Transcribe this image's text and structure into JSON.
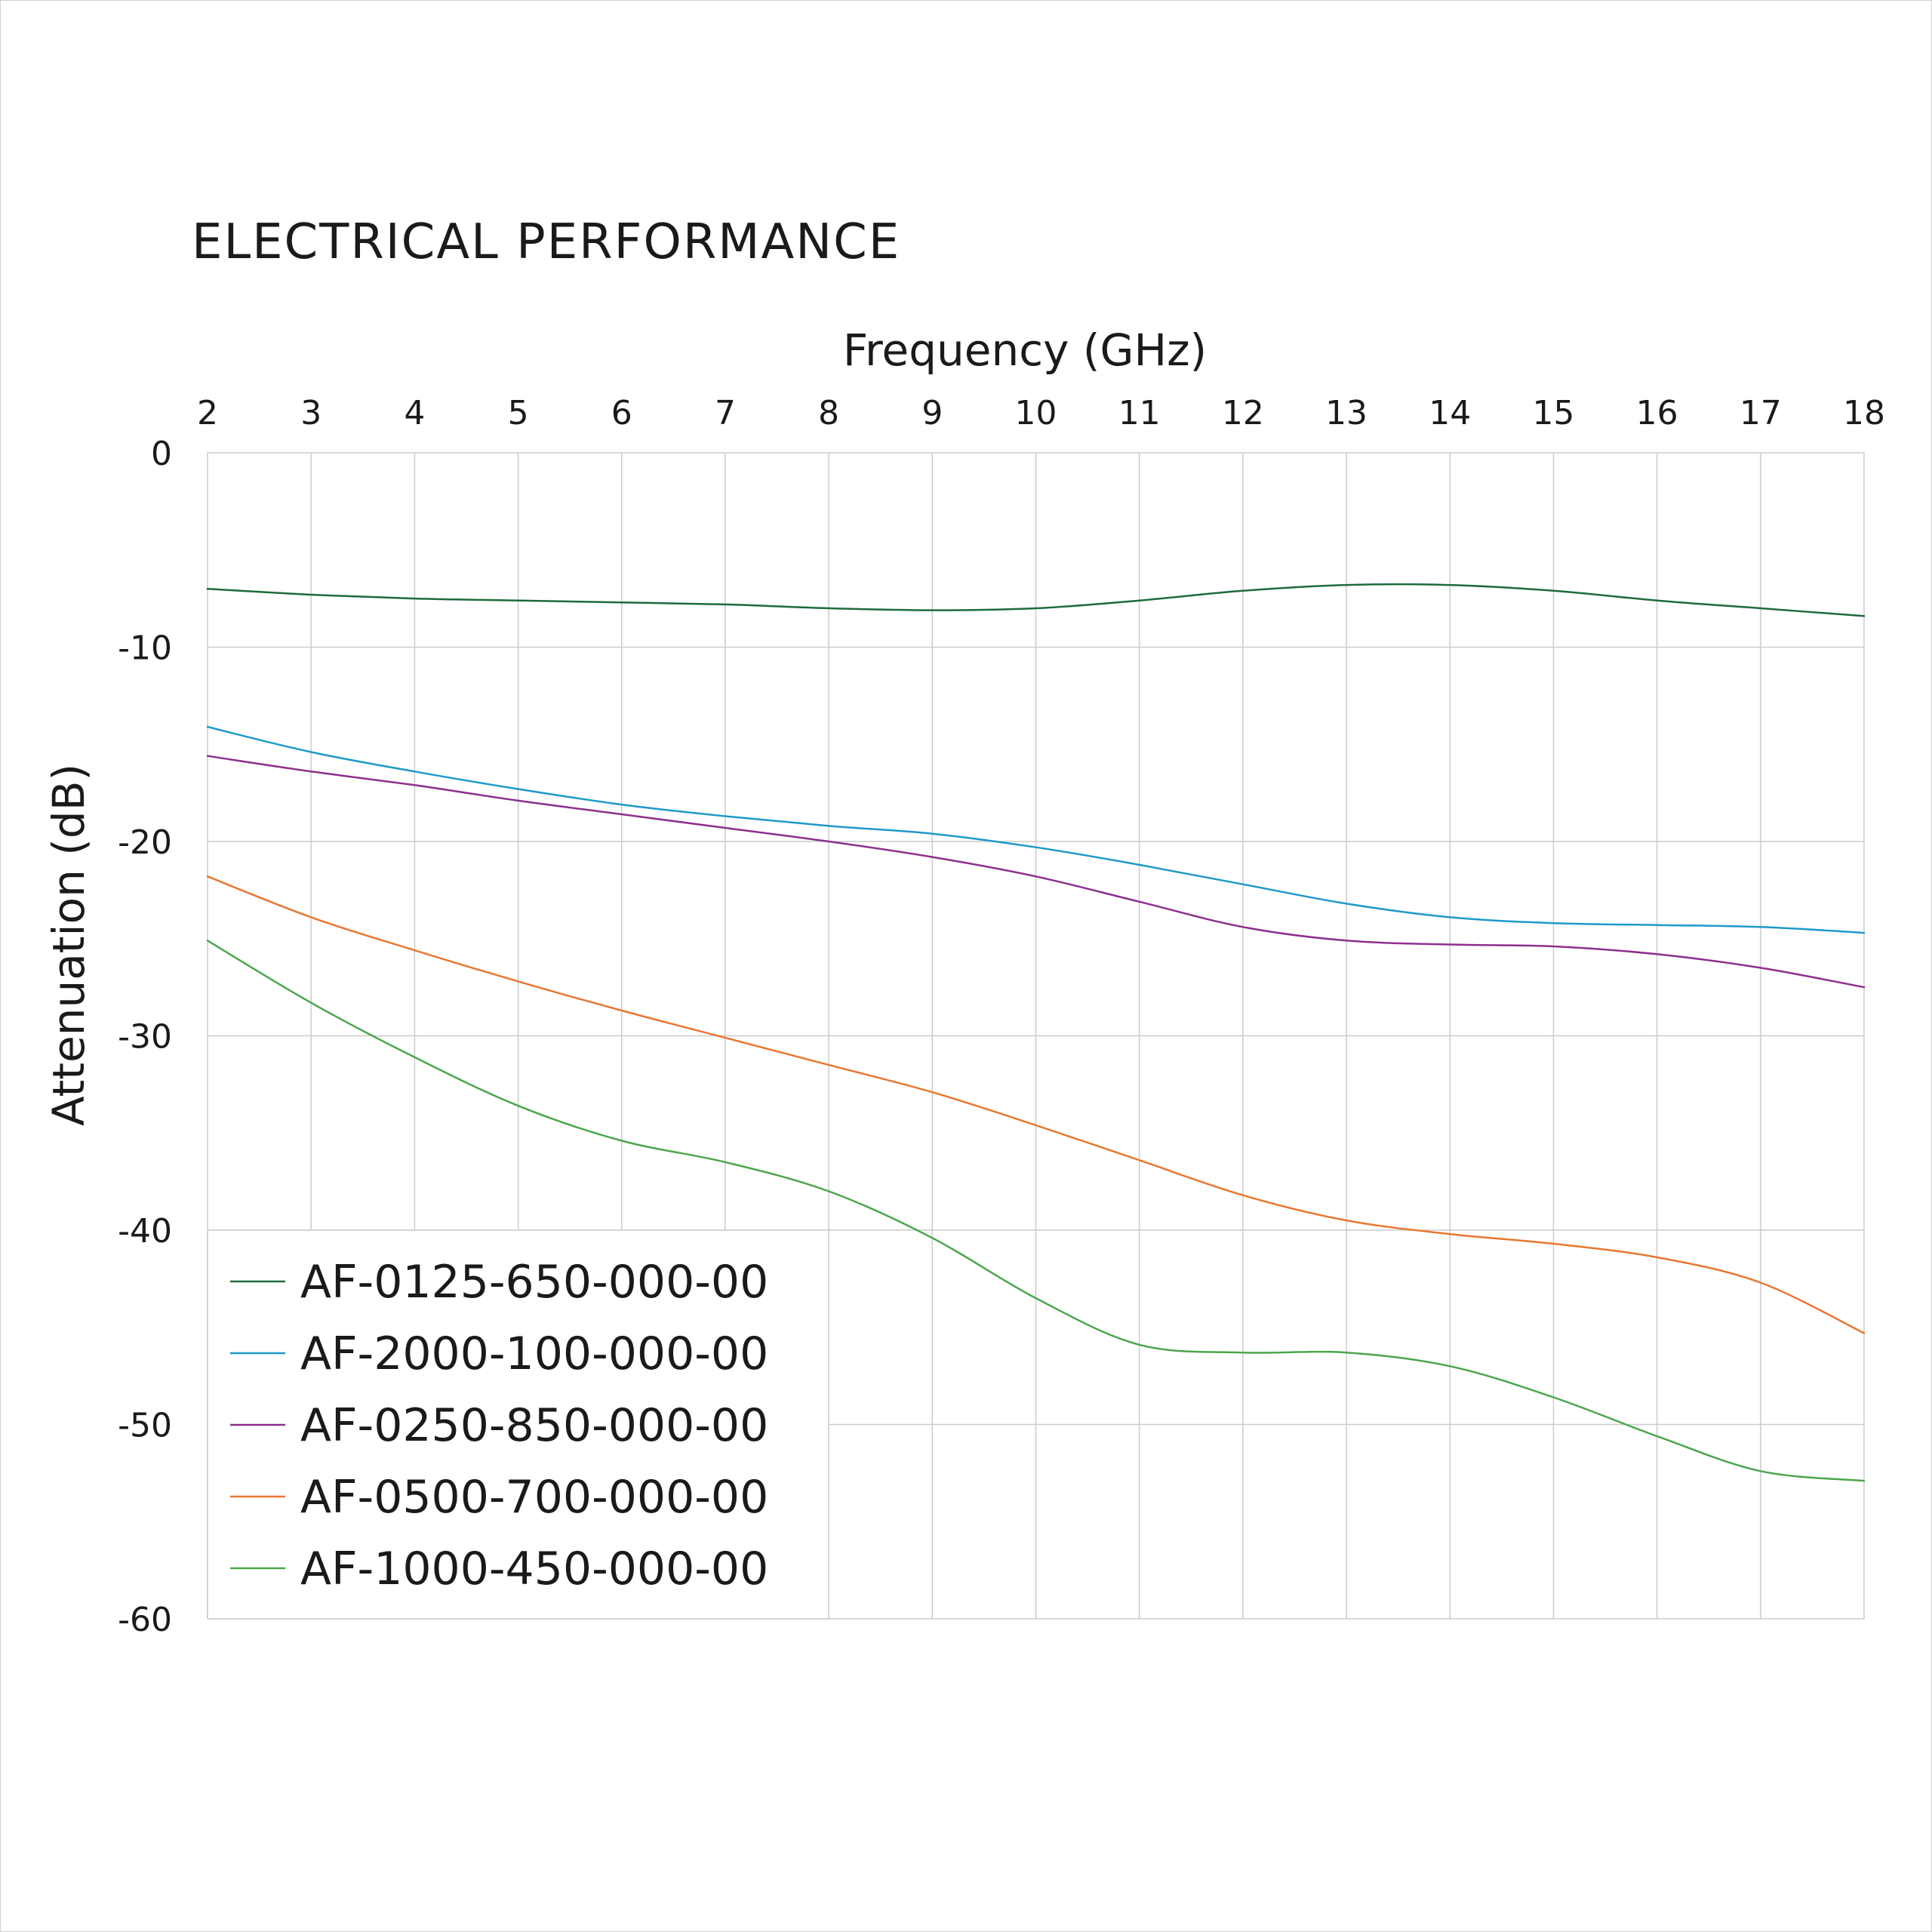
{
  "chart_data": {
    "type": "line",
    "title": "ELECTRICAL PERFORMANCE",
    "xlabel": "Frequency (GHz)",
    "ylabel": "Attenuation (dB)",
    "xlim": [
      2,
      18
    ],
    "ylim": [
      -60,
      0
    ],
    "x_axis_position": "top",
    "x_ticks": [
      "2",
      "3",
      "4",
      "5",
      "6",
      "7",
      "8",
      "9",
      "10",
      "11",
      "12",
      "13",
      "14",
      "15",
      "16",
      "17",
      "18"
    ],
    "y_ticks": [
      "0",
      "-10",
      "-20",
      "-30",
      "-40",
      "-50",
      "-60"
    ],
    "grid": true,
    "legend_position": "bottom-left",
    "x": [
      2,
      3,
      4,
      5,
      6,
      7,
      8,
      9,
      10,
      11,
      12,
      13,
      14,
      15,
      16,
      17,
      18
    ],
    "series": [
      {
        "name": "AF-0125-650-000-00",
        "color": "#1e6b3c",
        "values": [
          -7.0,
          -7.3,
          -7.5,
          -7.6,
          -7.7,
          -7.8,
          -8.0,
          -8.1,
          -8.0,
          -7.6,
          -7.1,
          -6.8,
          -6.8,
          -7.1,
          -7.6,
          -8.0,
          -8.4
        ]
      },
      {
        "name": "AF-2000-100-000-00",
        "color": "#1e9ac8",
        "values": [
          -14.1,
          -15.4,
          -16.4,
          -17.3,
          -18.1,
          -18.7,
          -19.2,
          -19.6,
          -20.3,
          -21.2,
          -22.2,
          -23.2,
          -23.9,
          -24.2,
          -24.3,
          -24.4,
          -24.7
        ]
      },
      {
        "name": "AF-0250-850-000-00",
        "color": "#8e2f8e",
        "values": [
          -15.6,
          -16.4,
          -17.1,
          -17.9,
          -18.6,
          -19.3,
          -20.0,
          -20.8,
          -21.8,
          -23.1,
          -24.4,
          -25.1,
          -25.3,
          -25.4,
          -25.8,
          -26.5,
          -27.5
        ]
      },
      {
        "name": "AF-0500-700-000-00",
        "color": "#e87732",
        "values": [
          -21.8,
          -23.9,
          -25.6,
          -27.2,
          -28.7,
          -30.1,
          -31.5,
          -32.9,
          -34.6,
          -36.4,
          -38.2,
          -39.5,
          -40.2,
          -40.7,
          -41.4,
          -42.7,
          -45.3
        ]
      },
      {
        "name": "AF-1000-450-000-00",
        "color": "#4ca64c",
        "values": [
          -25.1,
          -28.3,
          -31.1,
          -33.6,
          -35.4,
          -36.5,
          -38.0,
          -40.4,
          -43.5,
          -45.9,
          -46.3,
          -46.3,
          -47.0,
          -48.6,
          -50.6,
          -52.4,
          -52.9
        ]
      }
    ]
  }
}
